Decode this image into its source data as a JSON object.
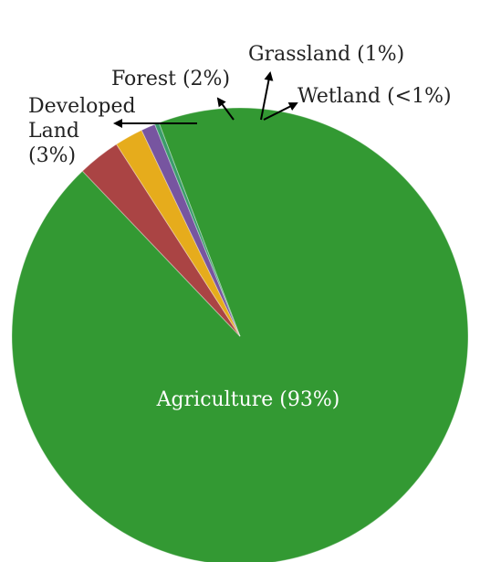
{
  "chart_data": {
    "type": "pie",
    "title": "",
    "slices": [
      {
        "name": "Agriculture",
        "value": 93,
        "label": "Agriculture (93%)",
        "color": "#339933"
      },
      {
        "name": "Developed Land",
        "value": 3,
        "label_lines": [
          "Developed",
          "Land",
          "(3%)"
        ],
        "color": "#aa4444"
      },
      {
        "name": "Forest",
        "value": 2,
        "label": "Forest (2%)",
        "color": "#e6ac1c"
      },
      {
        "name": "Grassland",
        "value": 1,
        "label": "Grassland (1%)",
        "color": "#7755a0"
      },
      {
        "name": "Wetland",
        "value": 0.3,
        "label": "Wetland (<1%)",
        "color": "#3c9c6c"
      }
    ],
    "start_angle": "top, clockwise",
    "legend": "none"
  }
}
